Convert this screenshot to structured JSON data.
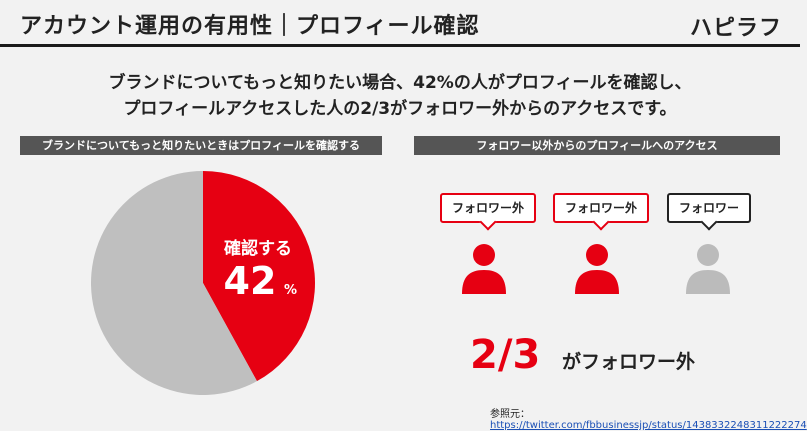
{
  "header": {
    "title": "アカウント運用の有用性｜プロフィール確認",
    "logo": "ハピラフ"
  },
  "lead": {
    "line1": "ブランドについてもっと知りたい場合、42%の人がプロフィールを確認し、",
    "line2": "プロフィールアクセスした人の2/3がフォロワー外からのアクセスです。"
  },
  "left_panel": {
    "header": "ブランドについてもっと知りたいときはプロフィールを確認する"
  },
  "right_panel": {
    "header": "フォロワー以外からのプロフィールへのアクセス",
    "people": [
      {
        "label": "フォロワー外",
        "color": "#e60012"
      },
      {
        "label": "フォロワー外",
        "color": "#e60012"
      },
      {
        "label": "フォロワー",
        "color": "#bbbbbb"
      }
    ],
    "big_value": "2/3",
    "big_suffix": "がフォロワー外"
  },
  "reference": {
    "label": "参照元：",
    "link": "https://twitter.com/fbbusinessjp/status/1438332248311222274"
  },
  "chart_data": {
    "type": "pie",
    "slices": [
      {
        "label": "確認する",
        "value": 42,
        "color": "#e60012"
      },
      {
        "label": "",
        "value": 58,
        "color": "#bfbfbf"
      }
    ],
    "slice_label": "確認する",
    "slice_value": "42",
    "slice_unit": "%"
  }
}
